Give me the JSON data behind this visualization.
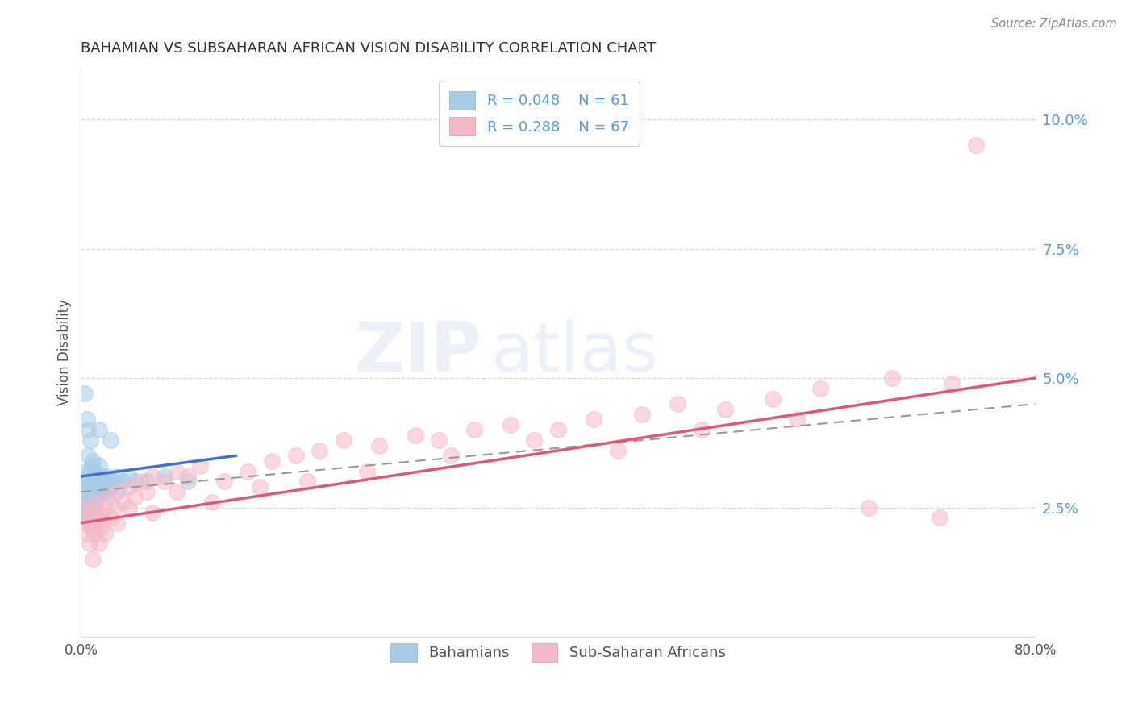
{
  "title": "BAHAMIAN VS SUBSAHARAN AFRICAN VISION DISABILITY CORRELATION CHART",
  "source": "Source: ZipAtlas.com",
  "ylabel": "Vision Disability",
  "legend_r1": "R = 0.048",
  "legend_n1": "N = 61",
  "legend_r2": "R = 0.288",
  "legend_n2": "N = 67",
  "legend_label1": "Bahamians",
  "legend_label2": "Sub-Saharan Africans",
  "color_blue": "#a8cce8",
  "color_pink": "#f5b8c8",
  "color_blue_line": "#4472c4",
  "color_pink_line": "#e05878",
  "color_gray_dashed": "#999999",
  "watermark_zip": "ZIP",
  "watermark_atlas": "atlas",
  "blue_scatter_x": [
    0.2,
    0.3,
    0.4,
    0.5,
    0.5,
    0.6,
    0.6,
    0.7,
    0.7,
    0.8,
    0.8,
    0.9,
    0.9,
    1.0,
    1.0,
    1.0,
    1.1,
    1.1,
    1.2,
    1.2,
    1.3,
    1.3,
    1.4,
    1.5,
    1.5,
    1.6,
    1.6,
    1.7,
    1.8,
    1.9,
    2.0,
    2.1,
    2.2,
    2.3,
    2.4,
    2.5,
    2.7,
    3.0,
    3.2,
    3.5,
    4.0,
    4.5,
    5.5,
    7.0,
    9.0,
    0.4,
    0.5,
    0.6,
    0.7,
    0.8,
    0.9,
    1.0,
    1.1,
    1.2,
    1.3,
    0.3,
    0.5,
    0.6,
    0.8,
    1.5,
    2.5
  ],
  "blue_scatter_y": [
    3.0,
    2.8,
    3.2,
    3.1,
    2.6,
    2.9,
    3.5,
    3.0,
    2.7,
    3.2,
    2.5,
    2.8,
    3.3,
    3.0,
    2.6,
    3.4,
    2.9,
    3.1,
    2.8,
    3.2,
    2.7,
    3.0,
    2.9,
    3.1,
    3.3,
    2.8,
    3.0,
    2.9,
    3.1,
    2.8,
    3.0,
    2.9,
    3.1,
    2.8,
    3.0,
    2.9,
    3.0,
    3.1,
    2.9,
    3.0,
    3.1,
    3.0,
    3.0,
    3.1,
    3.0,
    2.3,
    2.4,
    2.5,
    2.3,
    2.2,
    2.4,
    2.5,
    2.3,
    2.4,
    2.3,
    4.7,
    4.2,
    4.0,
    3.8,
    4.0,
    3.8
  ],
  "pink_scatter_x": [
    0.3,
    0.5,
    0.6,
    0.7,
    0.8,
    0.9,
    1.0,
    1.1,
    1.2,
    1.4,
    1.5,
    1.7,
    1.8,
    2.0,
    2.2,
    2.5,
    2.8,
    3.0,
    3.5,
    4.0,
    4.5,
    5.0,
    5.5,
    6.0,
    7.0,
    8.0,
    9.0,
    10.0,
    12.0,
    14.0,
    16.0,
    18.0,
    20.0,
    22.0,
    25.0,
    28.0,
    30.0,
    33.0,
    36.0,
    40.0,
    43.0,
    47.0,
    50.0,
    54.0,
    58.0,
    62.0,
    68.0,
    73.0,
    1.0,
    1.5,
    2.0,
    3.0,
    4.0,
    6.0,
    8.0,
    11.0,
    15.0,
    19.0,
    24.0,
    31.0,
    38.0,
    45.0,
    52.0,
    60.0,
    66.0,
    72.0,
    75.0
  ],
  "pink_scatter_y": [
    2.5,
    2.2,
    2.0,
    1.8,
    2.3,
    2.1,
    2.4,
    2.0,
    2.6,
    2.2,
    2.4,
    2.1,
    2.3,
    2.5,
    2.7,
    2.3,
    2.5,
    2.8,
    2.6,
    2.9,
    2.7,
    3.0,
    2.8,
    3.1,
    3.0,
    3.2,
    3.1,
    3.3,
    3.0,
    3.2,
    3.4,
    3.5,
    3.6,
    3.8,
    3.7,
    3.9,
    3.8,
    4.0,
    4.1,
    4.0,
    4.2,
    4.3,
    4.5,
    4.4,
    4.6,
    4.8,
    5.0,
    4.9,
    1.5,
    1.8,
    2.0,
    2.2,
    2.5,
    2.4,
    2.8,
    2.6,
    2.9,
    3.0,
    3.2,
    3.5,
    3.8,
    3.6,
    4.0,
    4.2,
    2.5,
    2.3,
    9.5
  ],
  "xlim": [
    0.0,
    80.0
  ],
  "ylim": [
    0.0,
    11.0
  ],
  "yticks": [
    2.5,
    5.0,
    7.5,
    10.0
  ],
  "xticks": [
    0.0,
    80.0
  ],
  "blue_line_x0": 0.0,
  "blue_line_y0": 3.1,
  "blue_line_x1": 13.0,
  "blue_line_y1": 3.5,
  "pink_line_x0": 0.0,
  "pink_line_y0": 2.2,
  "pink_line_x1": 80.0,
  "pink_line_y1": 5.0,
  "gray_line_x0": 0.0,
  "gray_line_y0": 2.8,
  "gray_line_x1": 80.0,
  "gray_line_y1": 4.5,
  "background_color": "#ffffff",
  "grid_color": "#cccccc",
  "title_color": "#333333",
  "axis_label_color": "#555555",
  "tick_color": "#5b9bd5",
  "source_color": "#888888"
}
